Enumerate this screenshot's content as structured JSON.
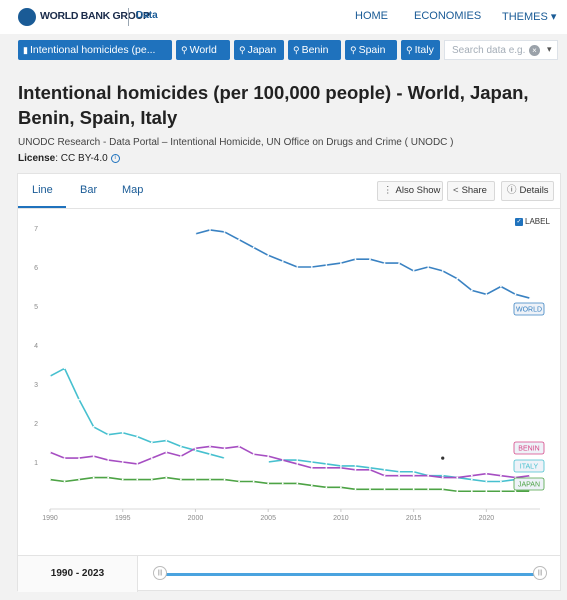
{
  "header": {
    "logo_text": "WORLD BANK GROUP",
    "logo_sub": "Data",
    "nav": [
      "HOME",
      "ECONOMIES",
      "THEMES"
    ],
    "themes_caret": "▾"
  },
  "filters": {
    "chips": [
      "Intentional homicides (pe...",
      "World",
      "Japan",
      "Benin",
      "Spain",
      "Italy"
    ],
    "search_placeholder": "Search data e.g.",
    "clear_icon": "×",
    "dropdown_icon": "▾"
  },
  "page": {
    "title": "Intentional homicides (per 100,000 people) - World, Japan, Benin, Spain, Italy",
    "source": "UNODC Research - Data Portal – Intentional Homicide, UN Office on Drugs and Crime ( UNODC )",
    "license_label": "License",
    "license_value": ": CC BY-4.0"
  },
  "tabs": [
    "Line",
    "Bar",
    "Map"
  ],
  "actions": {
    "also_show": "Also Show",
    "share": "Share",
    "details": "Details"
  },
  "label_toggle": "LABEL",
  "range": {
    "label": "1990 - 2023"
  },
  "colors": {
    "World": "#3a82c2",
    "Italy": "#47c0cf",
    "Benin": "#d64586",
    "Spain": "#a64ec2",
    "Japan": "#4da345",
    "axis_text": "#8a8a8a",
    "accent": "#1f72bd"
  },
  "chart_data": {
    "type": "line",
    "title": "",
    "xlabel": "",
    "ylabel": "",
    "xlim": [
      1990,
      2023
    ],
    "ylim": [
      0,
      7
    ],
    "x_ticks": [
      1990,
      1995,
      2000,
      2005,
      2010,
      2015,
      2020
    ],
    "y_ticks": [
      1,
      2,
      3,
      4,
      5,
      6,
      7
    ],
    "legend_placement": "end-labels right",
    "series": [
      {
        "name": "WORLD",
        "x": [
          2000,
          2001,
          2002,
          2003,
          2004,
          2005,
          2006,
          2007,
          2008,
          2009,
          2010,
          2011,
          2012,
          2013,
          2014,
          2015,
          2016,
          2017,
          2018,
          2019,
          2020,
          2021,
          2022,
          2023
        ],
        "values": [
          6.85,
          6.95,
          6.9,
          6.7,
          6.5,
          6.3,
          6.15,
          6.0,
          6.0,
          6.05,
          6.1,
          6.2,
          6.2,
          6.1,
          6.1,
          5.9,
          6.0,
          5.9,
          5.7,
          5.4,
          5.3,
          5.5,
          5.3,
          5.2
        ]
      },
      {
        "name": "ITALY",
        "x": [
          1990,
          1991,
          1992,
          1993,
          1994,
          1995,
          1996,
          1997,
          1998,
          1999,
          2000,
          2001,
          2002,
          2003,
          2004,
          2005,
          2006,
          2007,
          2008,
          2009,
          2010,
          2011,
          2012,
          2013,
          2014,
          2015,
          2016,
          2017,
          2018,
          2019,
          2020,
          2021,
          2022
        ],
        "values": [
          3.2,
          3.4,
          2.6,
          1.9,
          1.7,
          1.75,
          1.65,
          1.5,
          1.55,
          1.4,
          1.3,
          1.2,
          1.1,
          null,
          null,
          1.0,
          1.05,
          1.05,
          1.0,
          0.95,
          0.9,
          0.9,
          0.85,
          0.8,
          0.75,
          0.75,
          0.65,
          0.65,
          0.6,
          0.55,
          0.5,
          0.5,
          0.55
        ]
      },
      {
        "name": "BENIN",
        "x": [
          2017
        ],
        "values": [
          1.1
        ]
      },
      {
        "name": "SPAIN",
        "x": [
          1990,
          1991,
          1992,
          1993,
          1994,
          1995,
          1996,
          1997,
          1998,
          1999,
          2000,
          2001,
          2002,
          2003,
          2004,
          2005,
          2006,
          2007,
          2008,
          2009,
          2010,
          2011,
          2012,
          2013,
          2014,
          2015,
          2016,
          2017,
          2018,
          2019,
          2020,
          2021,
          2022,
          2023
        ],
        "values": [
          1.25,
          1.1,
          1.1,
          1.15,
          1.05,
          1.0,
          0.95,
          1.1,
          1.25,
          1.15,
          1.35,
          1.4,
          1.35,
          1.4,
          1.2,
          1.15,
          1.05,
          0.95,
          0.85,
          0.85,
          0.85,
          0.8,
          0.8,
          0.65,
          0.65,
          0.65,
          0.65,
          0.6,
          0.6,
          0.65,
          0.7,
          0.65,
          0.6,
          0.65
        ]
      },
      {
        "name": "JAPAN",
        "x": [
          1990,
          1991,
          1992,
          1993,
          1994,
          1995,
          1996,
          1997,
          1998,
          1999,
          2000,
          2001,
          2002,
          2003,
          2004,
          2005,
          2006,
          2007,
          2008,
          2009,
          2010,
          2011,
          2012,
          2013,
          2014,
          2015,
          2016,
          2017,
          2018,
          2019,
          2020,
          2021,
          2022,
          2023
        ],
        "values": [
          0.55,
          0.5,
          0.55,
          0.6,
          0.6,
          0.55,
          0.55,
          0.55,
          0.6,
          0.55,
          0.55,
          0.55,
          0.55,
          0.5,
          0.5,
          0.45,
          0.45,
          0.45,
          0.4,
          0.35,
          0.35,
          0.3,
          0.3,
          0.3,
          0.3,
          0.3,
          0.3,
          0.3,
          0.25,
          0.25,
          0.25,
          0.25,
          0.25,
          0.25
        ]
      }
    ]
  }
}
